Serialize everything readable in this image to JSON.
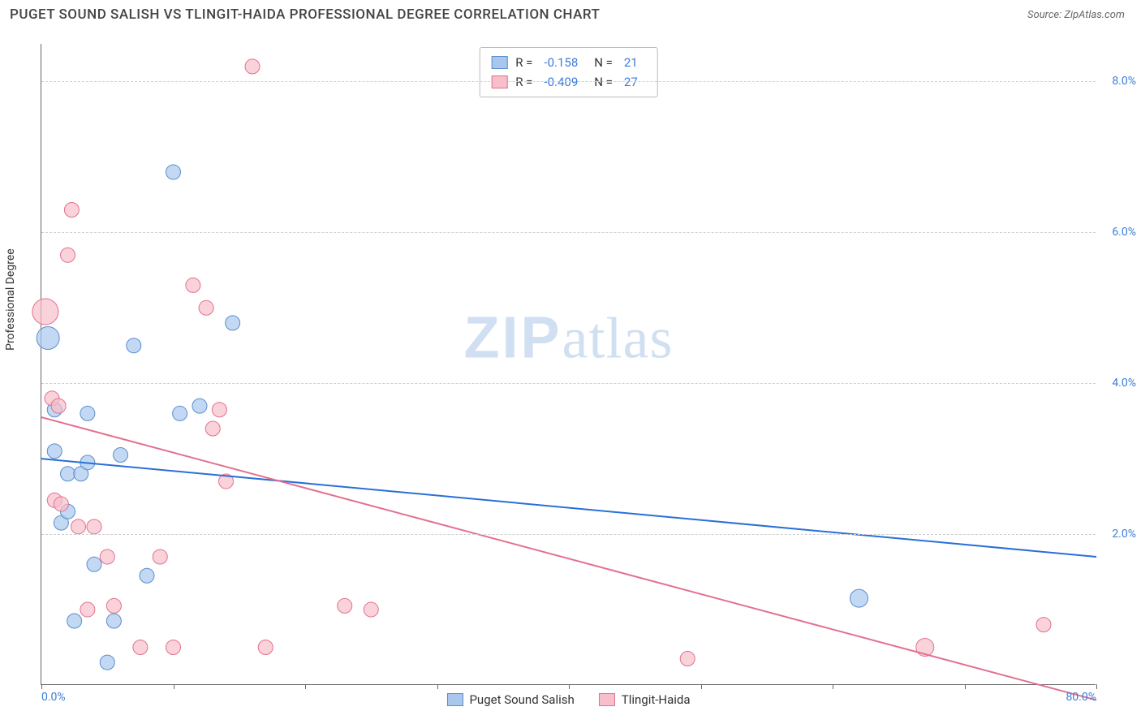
{
  "title": "PUGET SOUND SALISH VS TLINGIT-HAIDA PROFESSIONAL DEGREE CORRELATION CHART",
  "source": "Source: ZipAtlas.com",
  "y_axis_title": "Professional Degree",
  "chart": {
    "type": "scatter",
    "xlim": [
      0,
      80
    ],
    "ylim": [
      0,
      8.5
    ],
    "x_ticks": [
      0,
      10,
      20,
      30,
      40,
      50,
      60,
      70,
      80
    ],
    "x_tick_labels": [
      "0.0%",
      "",
      "",
      "",
      "",
      "",
      "",
      "",
      "80.0%"
    ],
    "y_ticks": [
      2,
      4,
      6,
      8
    ],
    "y_tick_labels": [
      "2.0%",
      "4.0%",
      "6.0%",
      "8.0%"
    ],
    "grid_color": "#d0d0d0",
    "axis_color": "#666666",
    "tick_label_color": "#3b7dd8",
    "series": [
      {
        "name": "Puget Sound Salish",
        "color_fill": "#a9c7ec",
        "color_stroke": "#5a8ecf",
        "marker_radius": 9,
        "marker_opacity": 0.7,
        "trend": {
          "x1": 0,
          "y1": 3.0,
          "x2": 80,
          "y2": 1.7,
          "color": "#2a6fd6",
          "width": 2
        },
        "R": "-0.158",
        "N": "21",
        "points": [
          [
            0.5,
            4.6,
            14
          ],
          [
            1.0,
            3.1,
            9
          ],
          [
            1.5,
            2.15,
            9
          ],
          [
            2.0,
            2.8,
            9
          ],
          [
            2.5,
            0.85,
            9
          ],
          [
            3.0,
            2.8,
            9
          ],
          [
            3.5,
            3.6,
            9
          ],
          [
            4.0,
            1.6,
            9
          ],
          [
            5.0,
            0.3,
            9
          ],
          [
            5.5,
            0.85,
            9
          ],
          [
            6.0,
            3.05,
            9
          ],
          [
            7.0,
            4.5,
            9
          ],
          [
            8.0,
            1.45,
            9
          ],
          [
            10.0,
            6.8,
            9
          ],
          [
            10.5,
            3.6,
            9
          ],
          [
            12.0,
            3.7,
            9
          ],
          [
            14.5,
            4.8,
            9
          ],
          [
            62.0,
            1.15,
            11
          ],
          [
            2.0,
            2.3,
            9
          ],
          [
            1.0,
            3.65,
            9
          ],
          [
            3.5,
            2.95,
            9
          ]
        ]
      },
      {
        "name": "Tlingit-Haida",
        "color_fill": "#f6bfcb",
        "color_stroke": "#e2718f",
        "marker_radius": 9,
        "marker_opacity": 0.7,
        "trend": {
          "x1": 0,
          "y1": 3.55,
          "x2": 80,
          "y2": -0.2,
          "color": "#e2718f",
          "width": 2
        },
        "R": "-0.409",
        "N": "27",
        "points": [
          [
            0.3,
            4.95,
            16
          ],
          [
            0.8,
            3.8,
            9
          ],
          [
            1.0,
            2.45,
            9
          ],
          [
            1.3,
            3.7,
            9
          ],
          [
            1.5,
            2.4,
            9
          ],
          [
            2.0,
            5.7,
            9
          ],
          [
            2.3,
            6.3,
            9
          ],
          [
            2.8,
            2.1,
            9
          ],
          [
            3.5,
            1.0,
            9
          ],
          [
            4.0,
            2.1,
            9
          ],
          [
            5.0,
            1.7,
            9
          ],
          [
            5.5,
            1.05,
            9
          ],
          [
            7.5,
            0.5,
            9
          ],
          [
            9.0,
            1.7,
            9
          ],
          [
            10.0,
            0.5,
            9
          ],
          [
            11.5,
            5.3,
            9
          ],
          [
            12.5,
            5.0,
            9
          ],
          [
            13.0,
            3.4,
            9
          ],
          [
            13.5,
            3.65,
            9
          ],
          [
            14.0,
            2.7,
            9
          ],
          [
            16.0,
            8.2,
            9
          ],
          [
            17.0,
            0.5,
            9
          ],
          [
            23.0,
            1.05,
            9
          ],
          [
            25.0,
            1.0,
            9
          ],
          [
            49.0,
            0.35,
            9
          ],
          [
            67.0,
            0.5,
            11
          ],
          [
            76.0,
            0.8,
            9
          ]
        ]
      }
    ]
  },
  "top_legend": {
    "rows": [
      {
        "swatch_fill": "#a9c7ec",
        "swatch_stroke": "#5a8ecf",
        "r_label": "R =",
        "r_val": "-0.158",
        "n_label": "N =",
        "n_val": "21"
      },
      {
        "swatch_fill": "#f6bfcb",
        "swatch_stroke": "#e2718f",
        "r_label": "R =",
        "r_val": "-0.409",
        "n_label": "N =",
        "n_val": "27"
      }
    ]
  },
  "bottom_legend": {
    "items": [
      {
        "swatch_fill": "#a9c7ec",
        "swatch_stroke": "#5a8ecf",
        "label": "Puget Sound Salish"
      },
      {
        "swatch_fill": "#f6bfcb",
        "swatch_stroke": "#e2718f",
        "label": "Tlingit-Haida"
      }
    ]
  },
  "watermark": {
    "zip": "ZIP",
    "rest": "atlas"
  }
}
